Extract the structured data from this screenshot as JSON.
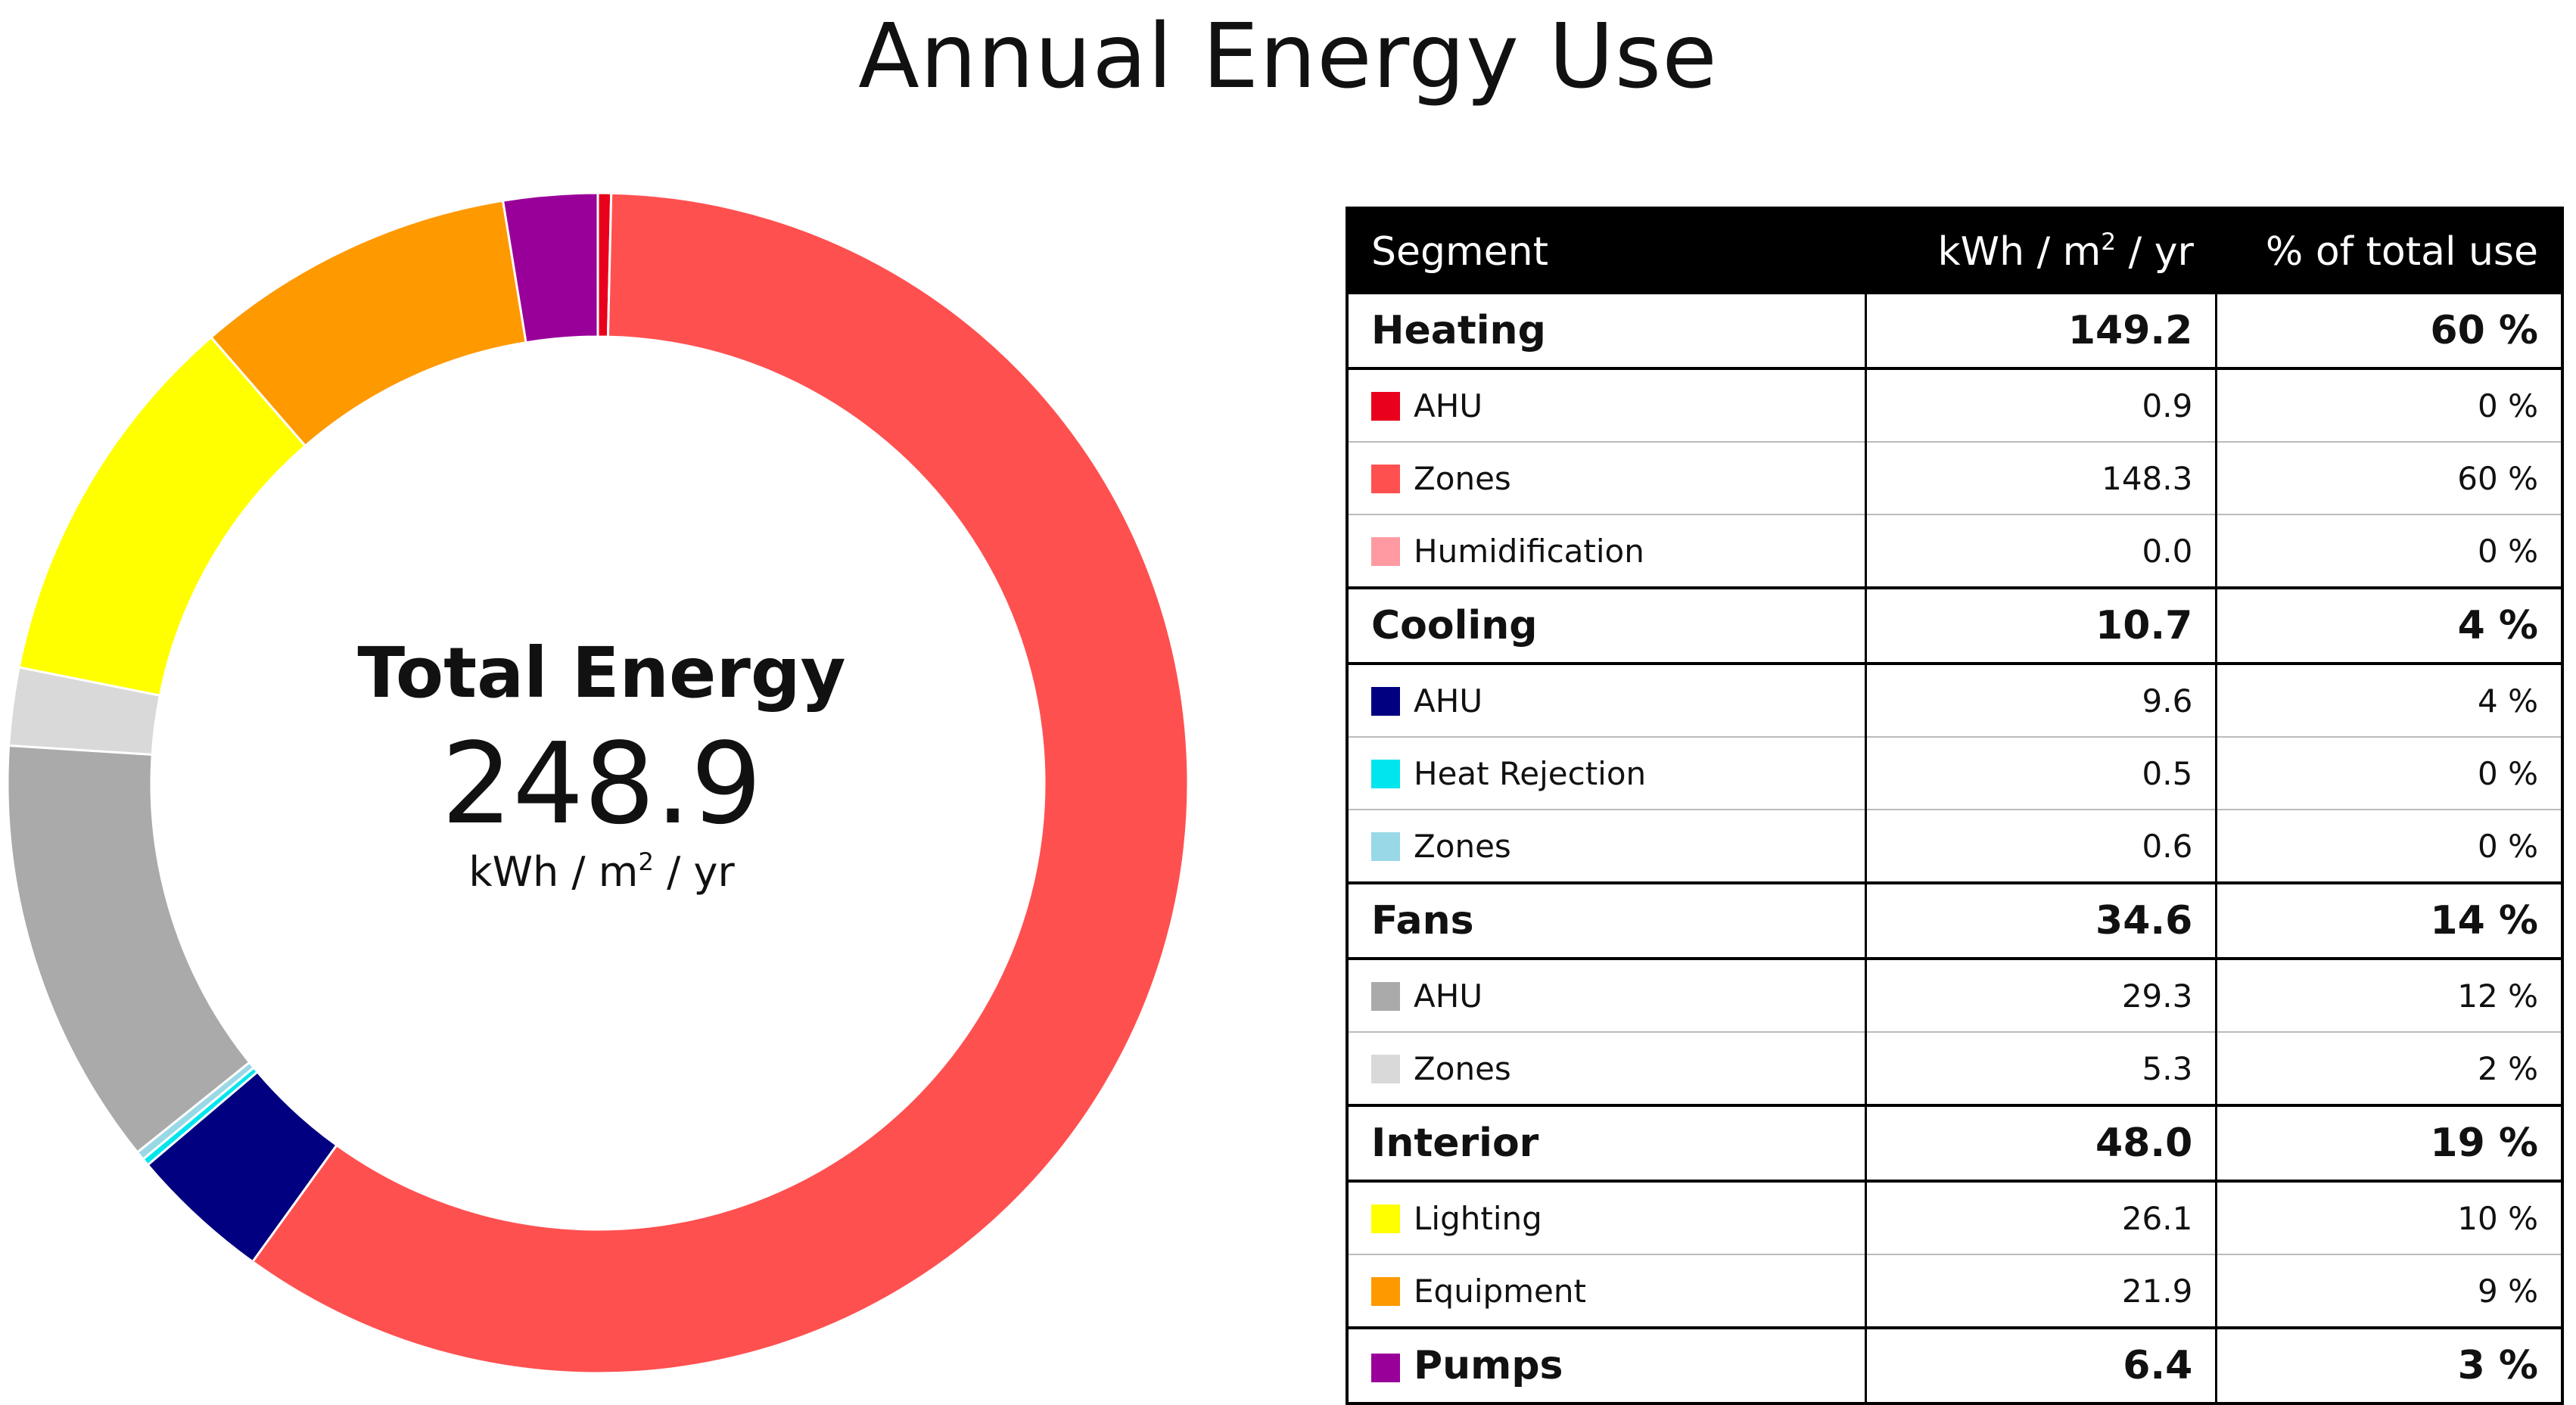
{
  "chart_data": {
    "type": "pie",
    "title": "Annual Energy Use",
    "center": {
      "title": "Total Energy",
      "value": "248.9",
      "unit_pre": "kWh / m",
      "unit_sup": "2",
      "unit_post": " / yr"
    },
    "slices": [
      {
        "group": "Heating",
        "label": "AHU",
        "value": 0.9,
        "color": "#e8001c"
      },
      {
        "group": "Heating",
        "label": "Zones",
        "value": 148.3,
        "color": "#ff5050"
      },
      {
        "group": "Heating",
        "label": "Humidification",
        "value": 0.0,
        "color": "#ff9aa2"
      },
      {
        "group": "Cooling",
        "label": "AHU",
        "value": 9.6,
        "color": "#000080"
      },
      {
        "group": "Cooling",
        "label": "Heat Rejection",
        "value": 0.5,
        "color": "#00e5ee"
      },
      {
        "group": "Cooling",
        "label": "Zones",
        "value": 0.6,
        "color": "#99d8e6"
      },
      {
        "group": "Fans",
        "label": "AHU",
        "value": 29.3,
        "color": "#aaaaaa"
      },
      {
        "group": "Fans",
        "label": "Zones",
        "value": 5.3,
        "color": "#d9d9d9"
      },
      {
        "group": "Interior",
        "label": "Lighting",
        "value": 26.1,
        "color": "#ffff00"
      },
      {
        "group": "Interior",
        "label": "Equipment",
        "value": 21.9,
        "color": "#ff9900"
      },
      {
        "group": "Pumps",
        "label": "Pumps",
        "value": 6.4,
        "color": "#990099"
      }
    ]
  },
  "table": {
    "headers": {
      "segment": "Segment",
      "unit_pre": "kWh / m",
      "unit_sup": "2",
      "unit_post": " / yr",
      "percent": "% of total use"
    },
    "rows": [
      {
        "kind": "group",
        "label": "Heating",
        "value": "149.2",
        "percent": "60 %"
      },
      {
        "kind": "item",
        "label": "AHU",
        "value": "0.9",
        "percent": "0 %",
        "color": "#e8001c"
      },
      {
        "kind": "item",
        "label": "Zones",
        "value": "148.3",
        "percent": "60 %",
        "color": "#ff5050"
      },
      {
        "kind": "item",
        "label": "Humidification",
        "value": "0.0",
        "percent": "0 %",
        "color": "#ff9aa2"
      },
      {
        "kind": "group",
        "label": "Cooling",
        "value": "10.7",
        "percent": "4 %"
      },
      {
        "kind": "item",
        "label": "AHU",
        "value": "9.6",
        "percent": "4 %",
        "color": "#000080"
      },
      {
        "kind": "item",
        "label": "Heat Rejection",
        "value": "0.5",
        "percent": "0 %",
        "color": "#00e5ee"
      },
      {
        "kind": "item",
        "label": "Zones",
        "value": "0.6",
        "percent": "0 %",
        "color": "#99d8e6"
      },
      {
        "kind": "group",
        "label": "Fans",
        "value": "34.6",
        "percent": "14 %"
      },
      {
        "kind": "item",
        "label": "AHU",
        "value": "29.3",
        "percent": "12 %",
        "color": "#aaaaaa"
      },
      {
        "kind": "item",
        "label": "Zones",
        "value": "5.3",
        "percent": "2 %",
        "color": "#d9d9d9"
      },
      {
        "kind": "group",
        "label": "Interior",
        "value": "48.0",
        "percent": "19 %"
      },
      {
        "kind": "item",
        "label": "Lighting",
        "value": "26.1",
        "percent": "10 %",
        "color": "#ffff00"
      },
      {
        "kind": "item",
        "label": "Equipment",
        "value": "21.9",
        "percent": "9 %",
        "color": "#ff9900"
      },
      {
        "kind": "group",
        "label": "Pumps",
        "value": "6.4",
        "percent": "3 %",
        "color": "#990099"
      }
    ]
  }
}
